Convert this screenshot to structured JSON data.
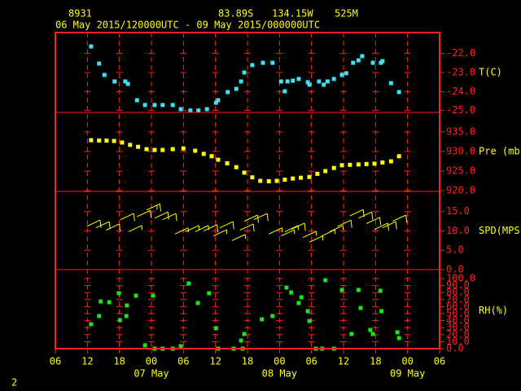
{
  "header": {
    "station": "8931",
    "lat": "83.89S",
    "lon": "134.15W",
    "elev": "525M",
    "period": "06 May 2015/120000UTC - 09 May 2015/000000UTC",
    "page": "2"
  },
  "x_axis": {
    "xlim": [
      0,
      72
    ],
    "xticks": [
      {
        "value": 0,
        "label": "06"
      },
      {
        "value": 6,
        "label": "12"
      },
      {
        "value": 12,
        "label": "18"
      },
      {
        "value": 18,
        "label": "00"
      },
      {
        "value": 24,
        "label": "06"
      },
      {
        "value": 30,
        "label": "12"
      },
      {
        "value": 36,
        "label": "18"
      },
      {
        "value": 42,
        "label": "00"
      },
      {
        "value": 48,
        "label": "06"
      },
      {
        "value": 54,
        "label": "12"
      },
      {
        "value": 60,
        "label": "18"
      },
      {
        "value": 66,
        "label": "00"
      },
      {
        "value": 72,
        "label": "06"
      }
    ],
    "day_labels": [
      {
        "value": 18,
        "label": "07 May"
      },
      {
        "value": 42,
        "label": "08 May"
      },
      {
        "value": 66,
        "label": "09 May"
      }
    ]
  },
  "chart_data": [
    {
      "type": "scatter",
      "ylabel": "T(C)",
      "color": "#40e0f0",
      "ylim": [
        -25.1,
        -20.9
      ],
      "yticks": [
        {
          "value": -22,
          "label": "-22.0"
        },
        {
          "value": -23,
          "label": "-23.0"
        },
        {
          "value": -24,
          "label": "-24.0"
        },
        {
          "value": -25,
          "label": "-25.0"
        }
      ],
      "x": [
        6.7,
        8.2,
        9.2,
        11.1,
        13.1,
        13.6,
        15.3,
        16.8,
        18.6,
        20.1,
        22.0,
        23.5,
        25.3,
        26.8,
        28.4,
        30.1,
        30.5,
        32.3,
        33.9,
        34.8,
        35.4,
        36.9,
        38.9,
        40.7,
        42.3,
        43.0,
        43.5,
        44.5,
        45.6,
        47.3,
        47.6,
        49.4,
        50.3,
        51.0,
        52.2,
        53.7,
        54.5,
        55.8,
        56.8,
        57.5,
        59.5,
        61.0,
        61.3,
        62.9,
        64.4
      ],
      "values": [
        -21.63,
        -22.53,
        -23.13,
        -23.47,
        -23.47,
        -23.6,
        -24.46,
        -24.71,
        -24.71,
        -24.71,
        -24.71,
        -24.93,
        -25.0,
        -25.0,
        -24.93,
        -24.59,
        -24.46,
        -24.03,
        -23.86,
        -23.47,
        -23.0,
        -22.61,
        -22.49,
        -22.49,
        -23.47,
        -23.99,
        -23.47,
        -23.43,
        -23.34,
        -23.51,
        -23.64,
        -23.47,
        -23.64,
        -23.47,
        -23.34,
        -23.13,
        -23.04,
        -22.49,
        -22.36,
        -22.14,
        -22.49,
        -22.49,
        -22.4,
        -23.56,
        -24.03
      ]
    },
    {
      "type": "scatter",
      "ylabel": "Pre (mb)",
      "color": "#ffff00",
      "ylim": [
        919.8,
        940
      ],
      "yticks": [
        {
          "value": 935,
          "label": "935.0"
        },
        {
          "value": 930,
          "label": "930.0"
        },
        {
          "value": 925,
          "label": "925.0"
        },
        {
          "value": 920,
          "label": "920.0"
        }
      ],
      "x": [
        6.7,
        8.2,
        9.6,
        11.0,
        12.5,
        14.0,
        15.5,
        17.1,
        18.6,
        20.1,
        22.0,
        24.0,
        26.2,
        27.8,
        29.3,
        30.5,
        32.2,
        33.9,
        35.4,
        36.9,
        38.4,
        40.0,
        41.5,
        43.0,
        44.5,
        46.0,
        47.6,
        49.1,
        50.6,
        52.2,
        53.7,
        55.2,
        56.8,
        58.3,
        59.8,
        61.3,
        62.9,
        64.4
      ],
      "values": [
        932.9,
        932.8,
        932.8,
        932.7,
        932.3,
        931.7,
        931.2,
        930.6,
        930.4,
        930.4,
        930.6,
        930.8,
        930.2,
        929.4,
        928.8,
        927.9,
        927.0,
        926.0,
        924.6,
        923.4,
        922.5,
        922.4,
        922.5,
        922.8,
        923.1,
        923.3,
        923.5,
        924.3,
        925.0,
        925.8,
        926.5,
        926.6,
        926.7,
        926.8,
        926.9,
        927.2,
        927.5,
        928.8
      ]
    },
    {
      "type": "barb",
      "ylabel": "SPD(MPS)",
      "color": "#ffff00",
      "ylim": [
        0,
        20.2
      ],
      "yticks": [
        {
          "value": 15,
          "label": "15.0"
        },
        {
          "value": 10,
          "label": "10.0"
        },
        {
          "value": 5,
          "label": "5.0"
        },
        {
          "value": 0,
          "label": "0.0"
        }
      ],
      "x": [
        5.9,
        7.6,
        9.5,
        12.2,
        13.7,
        15.3,
        17.1,
        18.6,
        20.1,
        22.4,
        24.4,
        26.2,
        27.8,
        29.6,
        30.8,
        33.1,
        34.6,
        35.4,
        37.2,
        40.0,
        42.3,
        43.0,
        44.2,
        46.4,
        47.6,
        49.9,
        51.4,
        52.9,
        55.2,
        56.8,
        58.3,
        59.8,
        61.3,
        63.2
      ],
      "values": [
        11.2,
        10.8,
        10.2,
        12.9,
        9.8,
        13.7,
        15.4,
        13.3,
        12.9,
        9.2,
        9.8,
        9.8,
        10.0,
        8.7,
        10.8,
        7.5,
        10.2,
        12.5,
        12.9,
        9.2,
        8.7,
        9.8,
        10.4,
        8.3,
        7.1,
        8.7,
        9.8,
        11.2,
        13.9,
        13.3,
        11.9,
        10.4,
        10.8,
        12.5
      ]
    },
    {
      "type": "scatter",
      "ylabel": "RH(%)",
      "color": "#20e020",
      "ylim": [
        0,
        112.8
      ],
      "yticks": [
        {
          "value": 100,
          "label": "100.0"
        },
        {
          "value": 90,
          "label": "90.0"
        },
        {
          "value": 80,
          "label": "80.0"
        },
        {
          "value": 70,
          "label": "70.0"
        },
        {
          "value": 60,
          "label": "60.0"
        },
        {
          "value": 50,
          "label": "50.0"
        },
        {
          "value": 40,
          "label": "40.0"
        },
        {
          "value": 30,
          "label": "30.0"
        },
        {
          "value": 20,
          "label": "20.0"
        },
        {
          "value": 10,
          "label": "10.0"
        },
        {
          "value": 0,
          "label": "0.0"
        }
      ],
      "x": [
        6.7,
        8.2,
        8.5,
        10.1,
        11.9,
        12.1,
        13.3,
        13.4,
        15.1,
        16.8,
        18.3,
        18.6,
        20.1,
        22.0,
        23.5,
        25.0,
        26.7,
        28.8,
        30.1,
        30.5,
        33.4,
        34.8,
        35.1,
        35.4,
        38.7,
        40.7,
        43.3,
        44.2,
        45.6,
        46.1,
        47.3,
        47.6,
        48.8,
        50.0,
        50.6,
        52.2,
        53.7,
        55.5,
        56.8,
        57.2,
        59.0,
        59.5,
        60.9,
        61.1,
        64.1,
        64.4
      ],
      "values": [
        34.9,
        46.5,
        67.4,
        66.3,
        79.1,
        40.7,
        46.5,
        61.6,
        75.6,
        4.7,
        75.6,
        0,
        0,
        0,
        3.5,
        93.0,
        65.1,
        79.1,
        29.1,
        0,
        0,
        11.6,
        0,
        20.9,
        41.9,
        46.5,
        87.2,
        80.2,
        65.1,
        73.3,
        53.5,
        39.5,
        0,
        0,
        97.7,
        0,
        83.7,
        20.9,
        83.7,
        58.1,
        26.7,
        20.9,
        82.6,
        53.5,
        23.3,
        15.1
      ]
    }
  ]
}
